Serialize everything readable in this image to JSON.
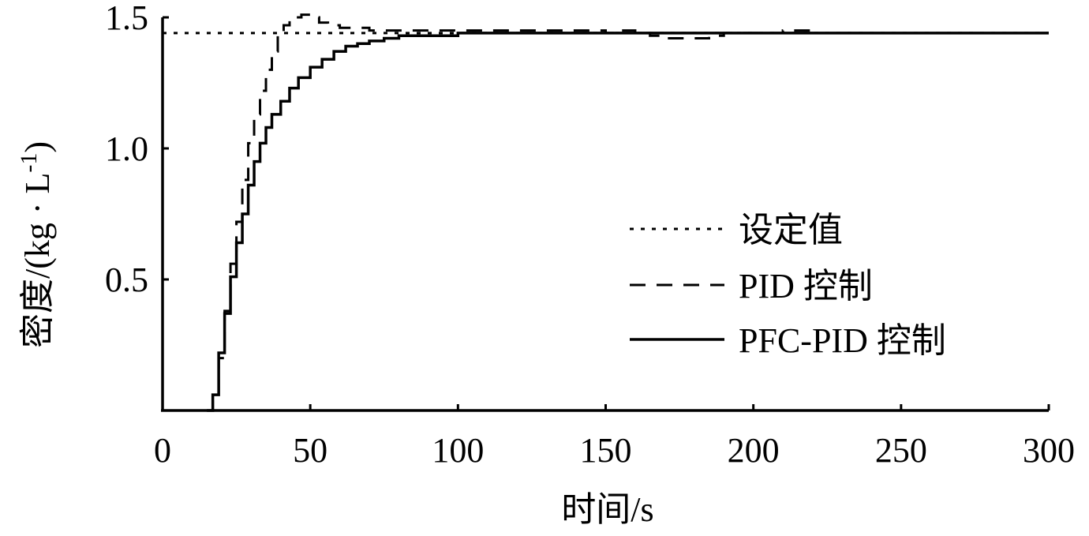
{
  "chart_data": {
    "type": "line",
    "title": "",
    "xlabel": "时间/s",
    "ylabel": "密度/(kg · L",
    "ylabel_sup": "-1",
    "ylabel_close": ")",
    "xlim": [
      0,
      300
    ],
    "ylim": [
      0,
      1.5
    ],
    "xticks": [
      0,
      50,
      100,
      150,
      200,
      250,
      300
    ],
    "xtick_labels": [
      "0",
      "50",
      "100",
      "150",
      "200",
      "250",
      "300"
    ],
    "yticks": [
      0.5,
      1.0,
      1.5
    ],
    "ytick_labels": [
      "0.5",
      "1.0",
      "1.5"
    ],
    "grid": false,
    "legend_position": "right",
    "series": [
      {
        "name": "设定值",
        "style": "dotted",
        "x": [
          0,
          300
        ],
        "y": [
          1.44,
          1.44
        ]
      },
      {
        "name": "PID 控制",
        "style": "dashed",
        "x": [
          15,
          17,
          19,
          21,
          23,
          25,
          27,
          29,
          31,
          33,
          35,
          37,
          39,
          41,
          43,
          45,
          47,
          50,
          53,
          56,
          60,
          65,
          70,
          80,
          90,
          100,
          120,
          140,
          150,
          155,
          160,
          165,
          170,
          175,
          180,
          185,
          190,
          200,
          210,
          220
        ],
        "y": [
          0.0,
          0.05,
          0.2,
          0.38,
          0.56,
          0.72,
          0.88,
          1.02,
          1.13,
          1.22,
          1.3,
          1.37,
          1.43,
          1.47,
          1.49,
          1.5,
          1.51,
          1.5,
          1.48,
          1.47,
          1.46,
          1.46,
          1.45,
          1.45,
          1.45,
          1.45,
          1.45,
          1.45,
          1.44,
          1.45,
          1.44,
          1.43,
          1.42,
          1.42,
          1.42,
          1.43,
          1.44,
          1.44,
          1.45,
          1.44
        ]
      },
      {
        "name": "PFC-PID 控制",
        "style": "solid",
        "x": [
          15,
          17,
          19,
          21,
          23,
          25,
          27,
          29,
          31,
          33,
          35,
          37,
          40,
          43,
          46,
          50,
          54,
          58,
          62,
          66,
          70,
          75,
          80,
          90,
          100,
          120,
          150,
          200,
          250,
          300
        ],
        "y": [
          0.0,
          0.06,
          0.22,
          0.37,
          0.51,
          0.64,
          0.75,
          0.86,
          0.95,
          1.02,
          1.08,
          1.13,
          1.18,
          1.23,
          1.27,
          1.31,
          1.34,
          1.37,
          1.39,
          1.4,
          1.41,
          1.42,
          1.43,
          1.43,
          1.44,
          1.44,
          1.44,
          1.44,
          1.44,
          1.44
        ]
      }
    ]
  }
}
